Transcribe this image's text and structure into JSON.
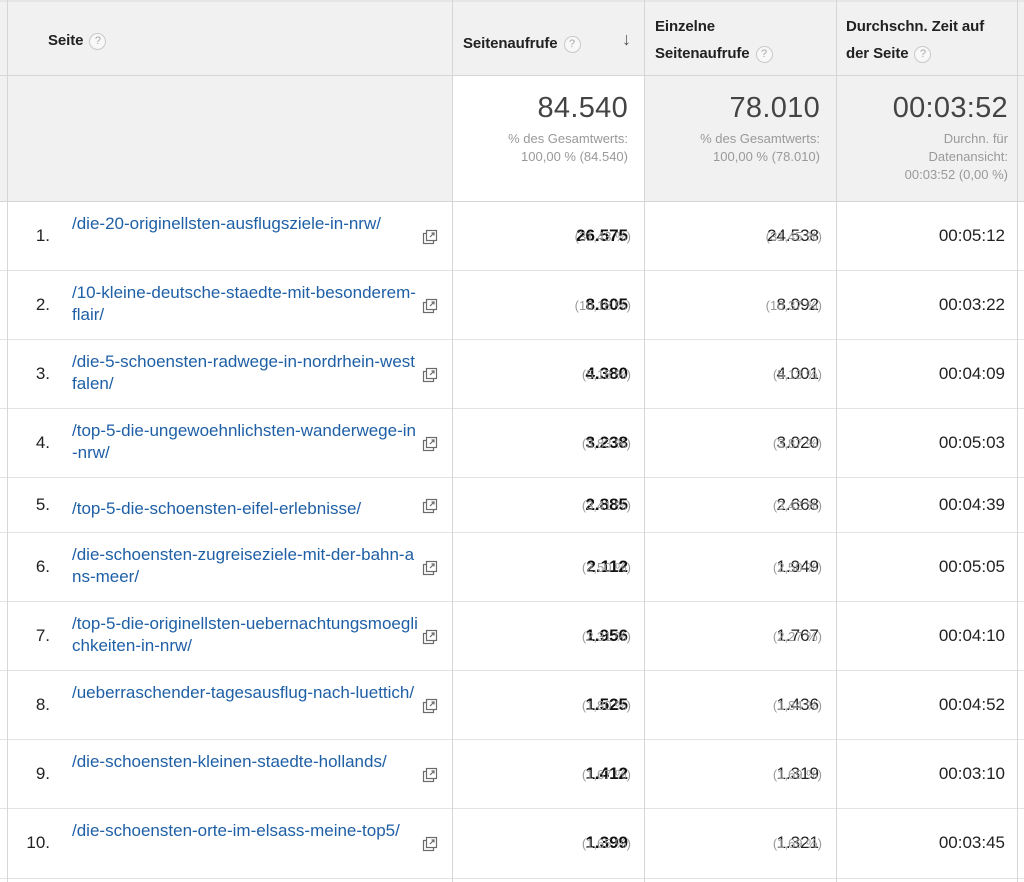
{
  "header": {
    "page": "Seite",
    "pageviews": "Seitenaufrufe",
    "unique_line1": "Einzelne",
    "unique_line2": "Seitenaufrufe",
    "avgtime_line1": "Durchschn. Zeit auf",
    "avgtime_line2": "der Seite",
    "help_glyph": "?",
    "sort_glyph": "↓"
  },
  "totals": {
    "pageviews": "84.540",
    "pageviews_sub1": "% des Gesamtwerts:",
    "pageviews_sub2": "100,00 % (84.540)",
    "unique": "78.010",
    "unique_sub1": "% des Gesamtwerts:",
    "unique_sub2": "100,00 % (78.010)",
    "avgtime": "00:03:52",
    "avgtime_sub1": "Durchn. für",
    "avgtime_sub2": "Datenansicht:",
    "avgtime_sub3": "00:03:52 (0,00 %)"
  },
  "rows": [
    {
      "rank": "1.",
      "page": "/die-20-originellsten-ausflugsziele-in-nrw/",
      "pageviews": "26.575",
      "pv_pct": "(31,43 %)",
      "unique": "24.538",
      "uv_pct": "(31,45 %)",
      "avgtime": "00:05:12"
    },
    {
      "rank": "2.",
      "page": "/10-kleine-deutsche-staedte-mit-besonderem-flair/",
      "pageviews": "8.605",
      "pv_pct": "(10,18 %)",
      "unique": "8.092",
      "uv_pct": "(10,37 %)",
      "avgtime": "00:03:22"
    },
    {
      "rank": "3.",
      "page": "/die-5-schoensten-radwege-in-nordrhein-westfalen/",
      "pageviews": "4.380",
      "pv_pct": "(5,18 %)",
      "unique": "4.001",
      "uv_pct": "(5,13 %)",
      "avgtime": "00:04:09"
    },
    {
      "rank": "4.",
      "page": "/top-5-die-ungewoehnlichsten-wanderwege-in-nrw/",
      "pageviews": "3.238",
      "pv_pct": "(3,83 %)",
      "unique": "3.020",
      "uv_pct": "(3,87 %)",
      "avgtime": "00:05:03"
    },
    {
      "rank": "5.",
      "page": "/top-5-die-schoensten-eifel-erlebnisse/",
      "pageviews": "2.885",
      "pv_pct": "(3,41 %)",
      "unique": "2.668",
      "uv_pct": "(3,42 %)",
      "avgtime": "00:04:39"
    },
    {
      "rank": "6.",
      "page": "/die-schoensten-zugreiseziele-mit-der-bahn-ans-meer/",
      "pageviews": "2.112",
      "pv_pct": "(2,50 %)",
      "unique": "1.949",
      "uv_pct": "(2,50 %)",
      "avgtime": "00:05:05"
    },
    {
      "rank": "7.",
      "page": "/top-5-die-originellsten-uebernachtungsmoeglichkeiten-in-nrw/",
      "pageviews": "1.956",
      "pv_pct": "(2,31 %)",
      "unique": "1.767",
      "uv_pct": "(2,27 %)",
      "avgtime": "00:04:10"
    },
    {
      "rank": "8.",
      "page": "/ueberraschender-tagesausflug-nach-luettich/",
      "pageviews": "1.525",
      "pv_pct": "(1,80 %)",
      "unique": "1.436",
      "uv_pct": "(1,84 %)",
      "avgtime": "00:04:52"
    },
    {
      "rank": "9.",
      "page": "/die-schoensten-kleinen-staedte-hollands/",
      "pageviews": "1.412",
      "pv_pct": "(1,67 %)",
      "unique": "1.319",
      "uv_pct": "(1,69 %)",
      "avgtime": "00:03:10"
    },
    {
      "rank": "10.",
      "page": "/die-schoensten-orte-im-elsass-meine-top5/",
      "pageviews": "1.399",
      "pv_pct": "(1,65 %)",
      "unique": "1.321",
      "uv_pct": "(1,69 %)",
      "avgtime": "00:03:45"
    }
  ],
  "icons": {
    "help": "help-circle-icon",
    "sort": "arrow-down-icon",
    "open_page": "open-in-new-window-icon"
  },
  "colors": {
    "link": "#1e5fa6",
    "header_bg": "#f1f1f1",
    "secondary_text": "#999999"
  }
}
